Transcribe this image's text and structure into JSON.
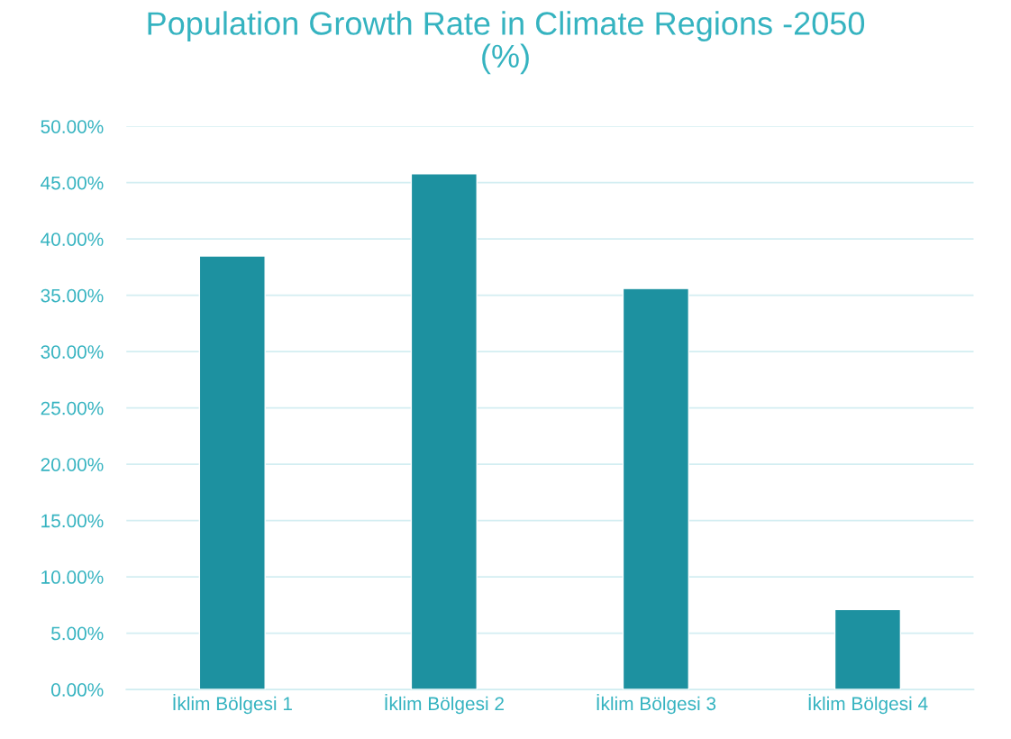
{
  "chart_data": {
    "type": "bar",
    "title": "Population Growth Rate in Climate Regions -2050\n(%)",
    "categories": [
      "İklim Bölgesi 1",
      "İklim Bölgesi 2",
      "İklim Bölgesi 3",
      "İklim Bölgesi 4"
    ],
    "values": [
      38.5,
      45.8,
      35.6,
      7.1
    ],
    "color": "#1d91a0",
    "ylim": [
      0,
      50
    ],
    "yticks": [
      {
        "value": 0,
        "label": "0.00%"
      },
      {
        "value": 5,
        "label": "5.00%"
      },
      {
        "value": 10,
        "label": "10.00%"
      },
      {
        "value": 15,
        "label": "15.00%"
      },
      {
        "value": 20,
        "label": "20.00%"
      },
      {
        "value": 25,
        "label": "25.00%"
      },
      {
        "value": 30,
        "label": "30.00%"
      },
      {
        "value": 35,
        "label": "35.00%"
      },
      {
        "value": 40,
        "label": "40.00%"
      },
      {
        "value": 45,
        "label": "45.00%"
      },
      {
        "value": 50,
        "label": "50.00%"
      }
    ],
    "grid": "y",
    "legend": false
  }
}
